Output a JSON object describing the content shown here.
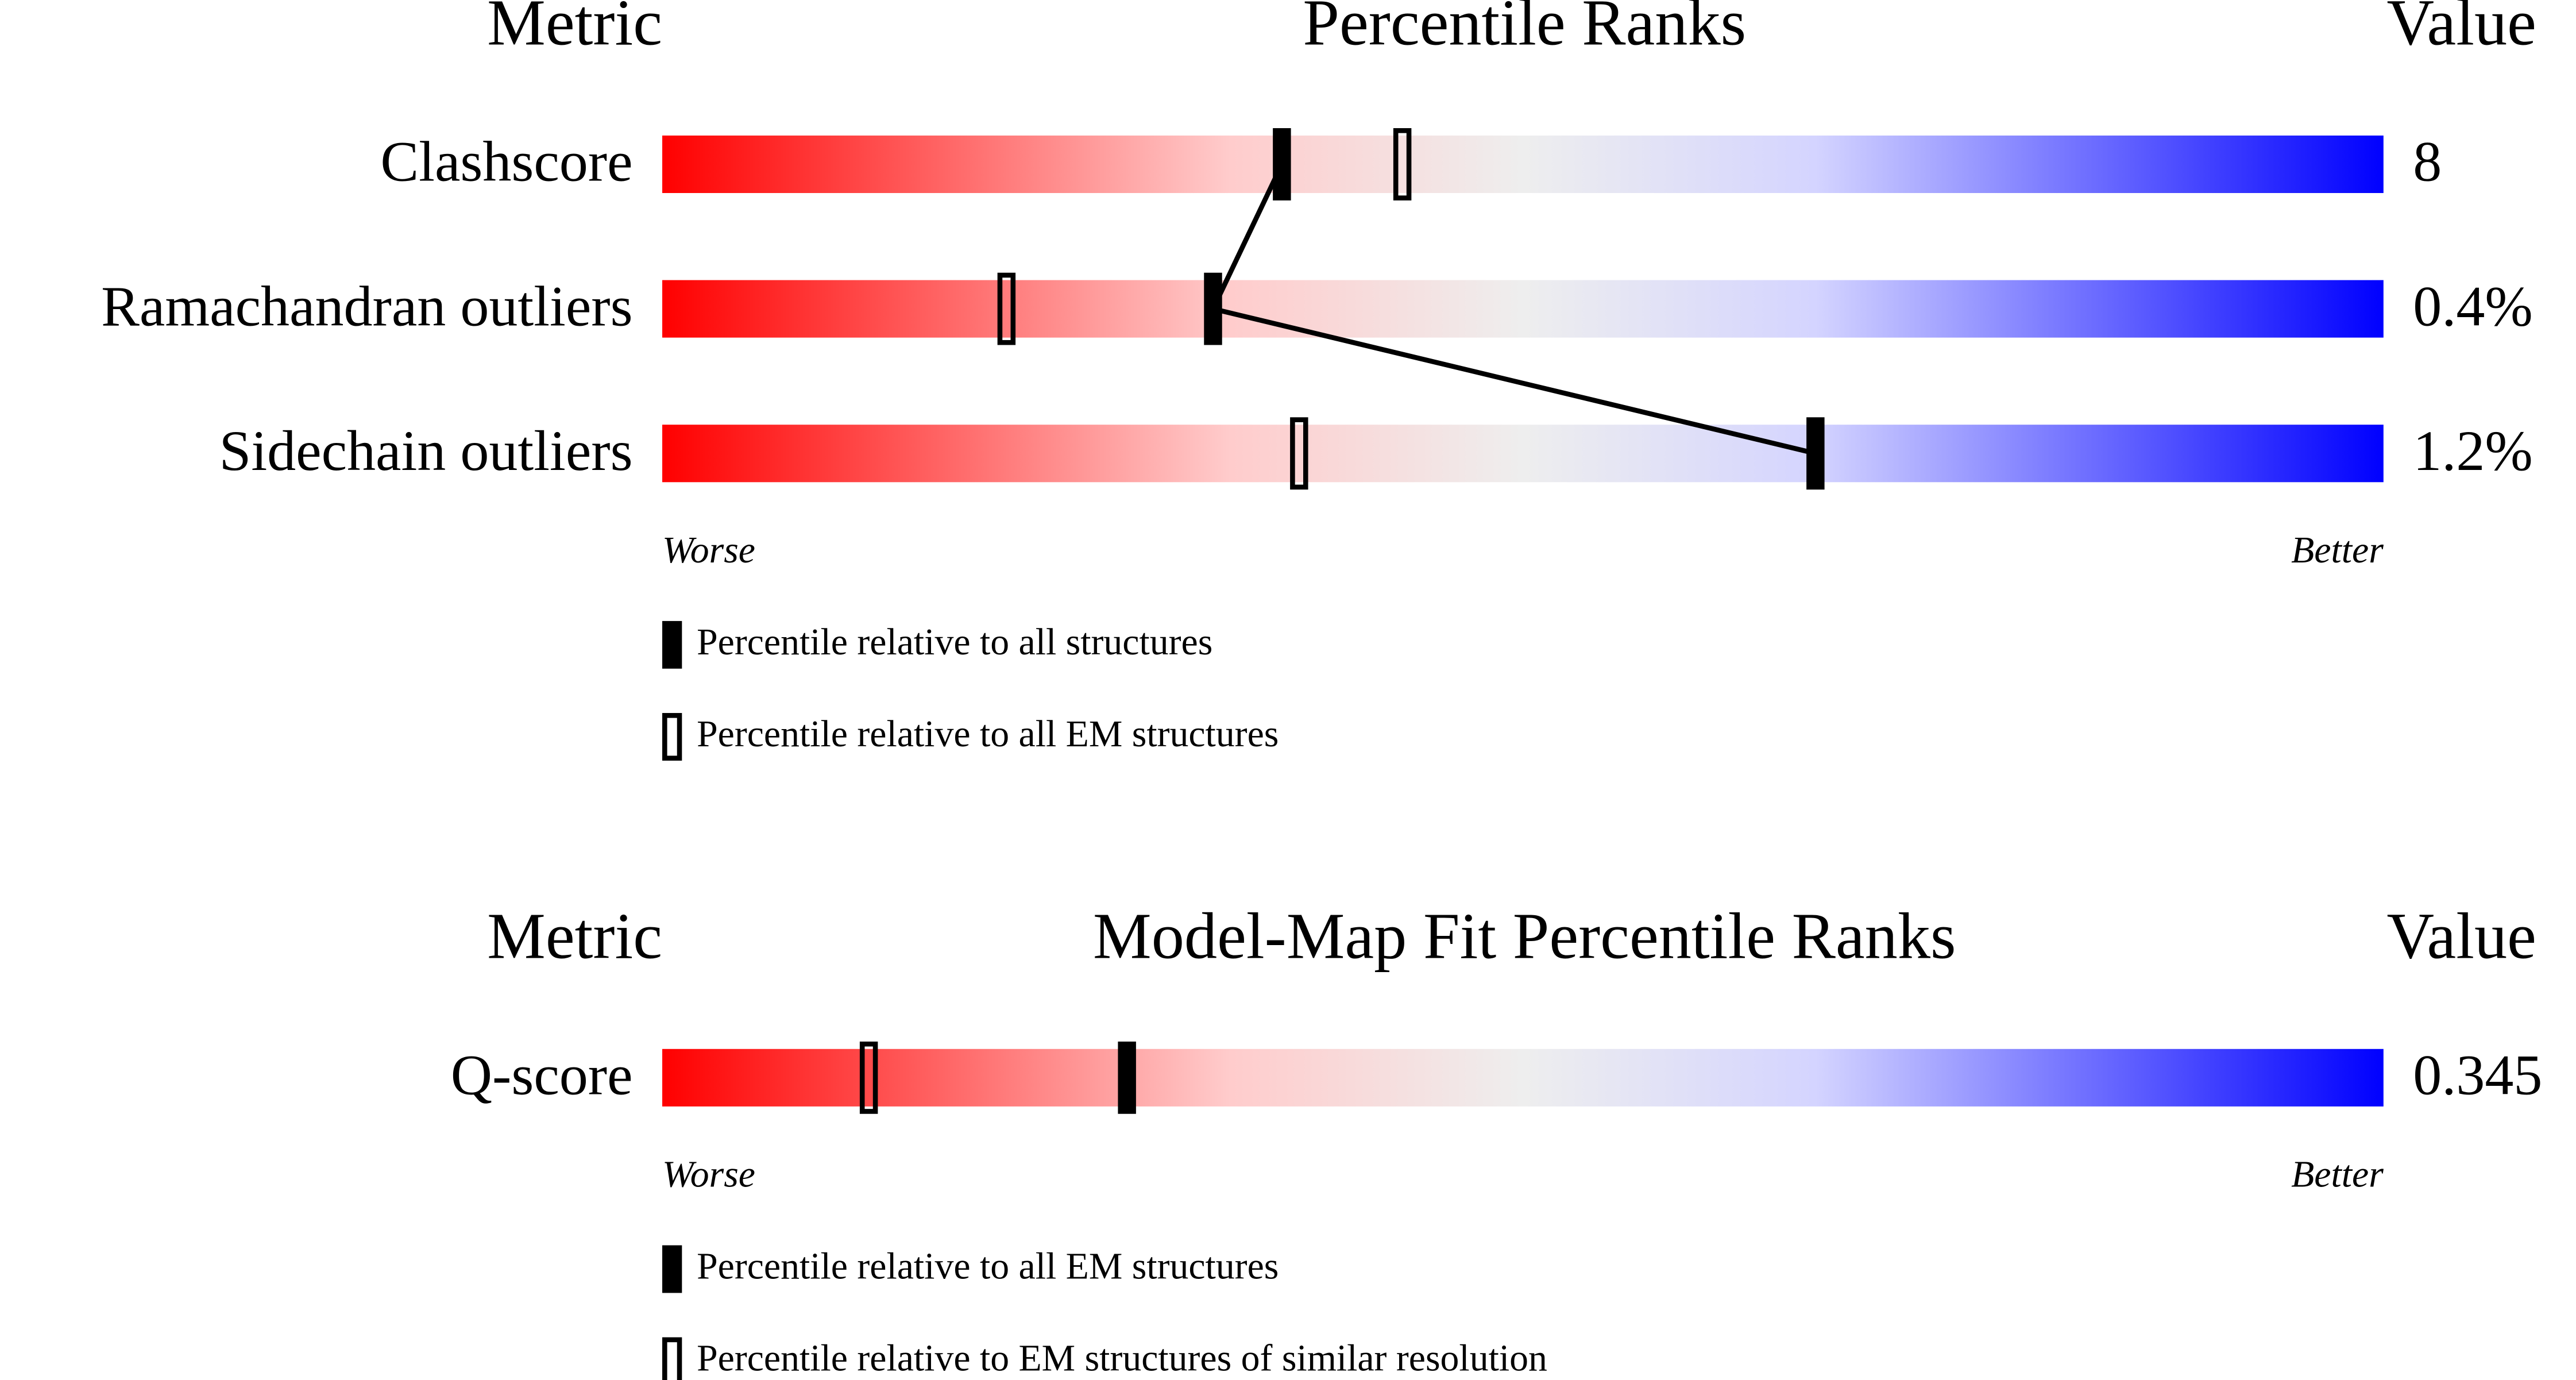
{
  "chart_data": [
    {
      "type": "percentile-slider",
      "title": "Percentile Ranks",
      "metric_header": "Metric",
      "value_header": "Value",
      "categories": [
        "Clashscore",
        "Ramachandran outliers",
        "Sidechain outliers"
      ],
      "metric_values": [
        "8",
        "0.4%",
        "1.2%"
      ],
      "xlim": [
        0,
        100
      ],
      "x_low_label": "Worse",
      "x_high_label": "Better",
      "series": [
        {
          "name": "Percentile relative to all structures",
          "style": "filled",
          "color": "#000000",
          "connect": true,
          "values": [
            36,
            32,
            67
          ]
        },
        {
          "name": "Percentile relative to all EM structures",
          "style": "open",
          "color": "#000000",
          "connect": false,
          "values": [
            43,
            20,
            37
          ]
        }
      ]
    },
    {
      "type": "percentile-slider",
      "title": "Model-Map Fit Percentile Ranks",
      "metric_header": "Metric",
      "value_header": "Value",
      "categories": [
        "Q-score"
      ],
      "metric_values": [
        "0.345"
      ],
      "xlim": [
        0,
        100
      ],
      "x_low_label": "Worse",
      "x_high_label": "Better",
      "series": [
        {
          "name": "Percentile relative to all EM structures",
          "style": "filled",
          "color": "#000000",
          "connect": true,
          "values": [
            27
          ]
        },
        {
          "name": "Percentile relative to EM structures of similar resolution",
          "style": "open",
          "color": "#000000",
          "connect": false,
          "values": [
            12
          ]
        }
      ]
    }
  ]
}
